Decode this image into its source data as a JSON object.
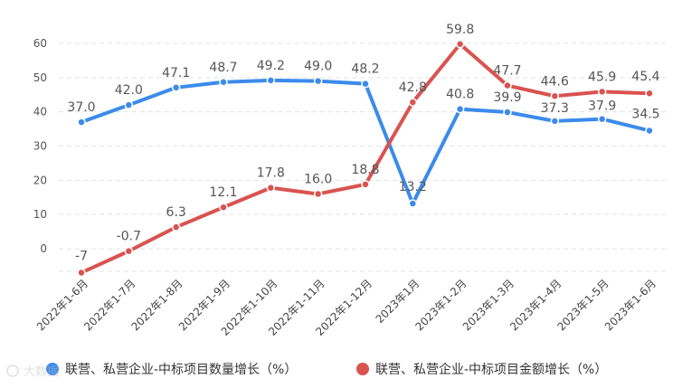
{
  "chart_data": {
    "type": "line",
    "categories": [
      "2022年1-6月",
      "2022年1-7月",
      "2022年1-8月",
      "2022年1-9月",
      "2022年1-10月",
      "2022年1-11月",
      "2022年1-12月",
      "2023年1月",
      "2023年1-2月",
      "2023年1-3月",
      "2023年1-4月",
      "2023年1-5月",
      "2023年1-6月"
    ],
    "series": [
      {
        "name": "联营、私营企业-中标项目数量增长（%）",
        "color": "#3b8beb",
        "values": [
          37.0,
          42.0,
          47.1,
          48.7,
          49.2,
          49.0,
          48.2,
          13.2,
          40.8,
          39.9,
          37.3,
          37.9,
          34.5
        ],
        "labels": [
          "37.0",
          "42.0",
          "47.1",
          "48.7",
          "49.2",
          "49.0",
          "48.2",
          "13.2",
          "40.8",
          "39.9",
          "37.3",
          "37.9",
          "34.5"
        ]
      },
      {
        "name": "联营、私营企业-中标项目金额增长（%）",
        "color": "#d9534f",
        "values": [
          -7,
          -0.7,
          6.3,
          12.1,
          17.8,
          16.0,
          18.8,
          42.8,
          59.8,
          47.7,
          44.6,
          45.9,
          45.4
        ],
        "labels": [
          "-7",
          "-0.7",
          "6.3",
          "12.1",
          "17.8",
          "16.0",
          "18.8",
          "42.8",
          "59.8",
          "47.7",
          "44.6",
          "45.9",
          "45.4"
        ]
      }
    ],
    "yticks": [
      0,
      10,
      20,
      30,
      40,
      50,
      60
    ],
    "ylim": [
      -8,
      62
    ],
    "grid": true,
    "legend_position": "bottom"
  },
  "watermark": "大数据"
}
